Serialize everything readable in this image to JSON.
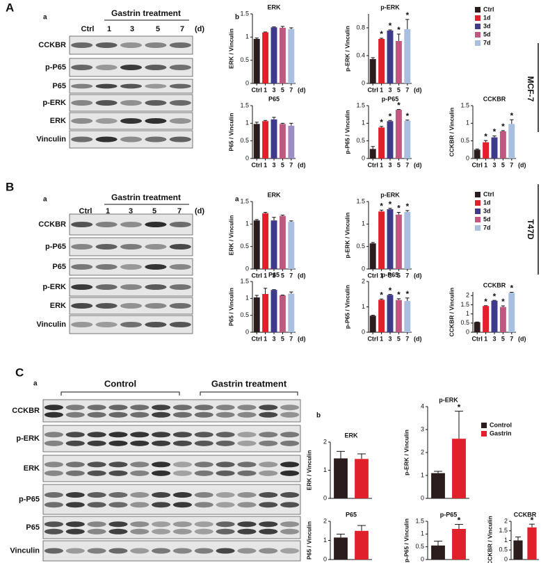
{
  "panels": [
    {
      "label": "A",
      "blot": {
        "label": "a",
        "header": "Gastrin treatment",
        "lanes": [
          "Ctrl",
          "1",
          "3",
          "5",
          "7",
          "(d)"
        ],
        "rows": [
          "CCKBR",
          "p-P65",
          "P65",
          "p-ERK",
          "ERK",
          "Vinculin"
        ]
      },
      "charts_label": "b",
      "cell_line": "MCF-7",
      "legend": {
        "names": [
          "Ctrl",
          "1d",
          "3d",
          "5d",
          "7d"
        ],
        "colors": [
          "#2b1d1d",
          "#e0202a",
          "#3f3a8a",
          "#c0577e",
          "#a9bfe0"
        ]
      }
    },
    {
      "label": "B",
      "blot": {
        "label": "a",
        "header": "Gastrin treatment",
        "lanes": [
          "Ctrl",
          "1",
          "3",
          "5",
          "7",
          "(d)"
        ],
        "rows": [
          "CCKBR",
          "p-P65",
          "P65",
          "p-ERK",
          "ERK",
          "Vinculin"
        ]
      },
      "charts_label": "a",
      "cell_line": "T47D",
      "legend": {
        "names": [
          "Ctrl",
          "1d",
          "3d",
          "5d",
          "7d"
        ],
        "colors": [
          "#2b1d1d",
          "#e0202a",
          "#3f3a8a",
          "#c0577e",
          "#a9bfe0"
        ]
      }
    },
    {
      "label": "C",
      "blot": {
        "label": "a",
        "groups": [
          "Control",
          "Gastrin treatment"
        ],
        "rows": [
          "CCKBR",
          "p-ERK",
          "ERK",
          "p-P65",
          "P65",
          "Vinculin"
        ]
      },
      "charts_label": "b",
      "legend": {
        "names": [
          "Control",
          "Gastrin"
        ],
        "colors": [
          "#2b1d1d",
          "#e0202a"
        ]
      }
    }
  ],
  "chart_data": [
    {
      "type": "bar",
      "title": "ERK",
      "ylabel": "ERK / Vinculin",
      "categories": [
        "Ctrl",
        "1",
        "3",
        "5",
        "7"
      ],
      "x_unit": "(d)",
      "values": [
        0.96,
        1.1,
        1.21,
        1.2,
        1.17
      ],
      "errors": [
        0.02,
        0.01,
        0.01,
        0.03,
        0.03
      ],
      "significance": [
        null,
        null,
        null,
        null,
        null
      ],
      "colors": [
        "#2b1d1d",
        "#e0202a",
        "#3f3a8a",
        "#c0577e",
        "#a9bfe0"
      ],
      "ylim": [
        0,
        1.5
      ],
      "yticks": [
        0,
        0.5,
        1,
        1.5
      ]
    },
    {
      "type": "bar",
      "title": "p-ERK",
      "ylabel": "p-ERK / Vinculin",
      "categories": [
        "Ctrl",
        "1",
        "3",
        "5",
        "7"
      ],
      "x_unit": "(d)",
      "values": [
        0.35,
        0.64,
        0.76,
        0.61,
        0.78
      ],
      "errors": [
        0.02,
        0.01,
        0.01,
        0.1,
        0.14
      ],
      "significance": [
        null,
        "*",
        "*",
        "*",
        "*"
      ],
      "colors": [
        "#2b1d1d",
        "#e0202a",
        "#3f3a8a",
        "#c0577e",
        "#a9bfe0"
      ],
      "ylim": [
        0,
        1.0
      ],
      "yticks": [
        0,
        0.4,
        0.8
      ]
    },
    {
      "type": "bar",
      "title": "P65",
      "ylabel": "P65 / Vinculin",
      "categories": [
        "Ctrl",
        "1",
        "3",
        "5",
        "7"
      ],
      "x_unit": "(d)",
      "values": [
        0.98,
        1.06,
        1.11,
        0.98,
        0.93
      ],
      "errors": [
        0.05,
        0.02,
        0.06,
        0.02,
        0.07
      ],
      "significance": [
        null,
        null,
        null,
        null,
        null
      ],
      "colors": [
        "#2b1d1d",
        "#e0202a",
        "#3f3a8a",
        "#c0577e",
        "#9b8ec4"
      ],
      "ylim": [
        0,
        1.5
      ],
      "yticks": [
        0,
        0.5,
        1,
        1.5
      ]
    },
    {
      "type": "bar",
      "title": "p-P65",
      "ylabel": "p-P65 / Vinculin",
      "categories": [
        "Ctrl",
        "1",
        "3",
        "5",
        "7"
      ],
      "x_unit": "(d)",
      "values": [
        0.27,
        0.88,
        1.06,
        1.38,
        1.07
      ],
      "errors": [
        0.07,
        0.03,
        0.02,
        0.01,
        0.02
      ],
      "significance": [
        null,
        "*",
        "*",
        "*",
        "*"
      ],
      "colors": [
        "#2b1d1d",
        "#e0202a",
        "#3f3a8a",
        "#c0577e",
        "#a9bfe0"
      ],
      "ylim": [
        0,
        1.5
      ],
      "yticks": [
        0,
        0.5,
        1,
        1.5
      ]
    },
    {
      "type": "bar",
      "title": "CCKBR",
      "ylabel": "CCKBR / Vinculin",
      "categories": [
        "Ctrl",
        "1",
        "3",
        "5",
        "7"
      ],
      "x_unit": "(d)",
      "values": [
        0.25,
        0.46,
        0.6,
        0.77,
        0.98
      ],
      "errors": [
        0.02,
        0.05,
        0.04,
        0.02,
        0.12
      ],
      "significance": [
        null,
        "*",
        "*",
        "*",
        "*"
      ],
      "colors": [
        "#2b1d1d",
        "#e0202a",
        "#3f3a8a",
        "#c0577e",
        "#a9bfe0"
      ],
      "ylim": [
        0,
        1.5
      ],
      "yticks": [
        0,
        0.5,
        1,
        1.5
      ]
    },
    {
      "type": "bar",
      "title": "ERK",
      "ylabel": "ERK / Vinculin",
      "categories": [
        "Ctrl",
        "1",
        "3",
        "5",
        "7"
      ],
      "x_unit": "(d)",
      "values": [
        1.08,
        1.24,
        1.08,
        1.18,
        1.05
      ],
      "errors": [
        0.02,
        0.02,
        0.07,
        0.02,
        0.02
      ],
      "significance": [
        null,
        null,
        null,
        null,
        null
      ],
      "colors": [
        "#2b1d1d",
        "#e0202a",
        "#3f3a8a",
        "#c0577e",
        "#a9bfe0"
      ],
      "ylim": [
        0,
        1.5
      ],
      "yticks": [
        0,
        0.5,
        1,
        1.5
      ]
    },
    {
      "type": "bar",
      "title": "p-ERK",
      "ylabel": "p-ERK / Vinculin",
      "categories": [
        "Ctrl",
        "1",
        "3",
        "5",
        "7"
      ],
      "x_unit": "(d)",
      "values": [
        0.57,
        1.28,
        1.33,
        1.21,
        1.27
      ],
      "errors": [
        0.02,
        0.03,
        0.02,
        0.05,
        0.03
      ],
      "significance": [
        null,
        "*",
        "*",
        "*",
        "*"
      ],
      "colors": [
        "#2b1d1d",
        "#e0202a",
        "#3f3a8a",
        "#c0577e",
        "#a9bfe0"
      ],
      "ylim": [
        0,
        1.5
      ],
      "yticks": [
        0,
        0.5,
        1,
        1.5
      ]
    },
    {
      "type": "bar",
      "title": "P65",
      "ylabel": "P65 / Vinculin",
      "categories": [
        "Ctrl",
        "1",
        "3",
        "5",
        "7"
      ],
      "x_unit": "(d)",
      "values": [
        1.03,
        1.13,
        1.25,
        1.09,
        1.14
      ],
      "errors": [
        0.06,
        0.17,
        0.01,
        0.01,
        0.05
      ],
      "significance": [
        null,
        null,
        null,
        null,
        null
      ],
      "colors": [
        "#2b1d1d",
        "#e0202a",
        "#3f3a8a",
        "#c0577e",
        "#a9bfe0"
      ],
      "ylim": [
        0,
        1.5
      ],
      "yticks": [
        0,
        0.5,
        1,
        1.5
      ]
    },
    {
      "type": "bar",
      "title": "p-P65",
      "ylabel": "p-P65 / Vinculin",
      "categories": [
        "Ctrl",
        "1",
        "3",
        "5",
        "7"
      ],
      "x_unit": "(d)",
      "values": [
        0.65,
        1.28,
        1.47,
        1.27,
        1.23
      ],
      "errors": [
        0.02,
        0.03,
        0.02,
        0.05,
        0.12
      ],
      "significance": [
        null,
        "*",
        "*",
        "*",
        "*"
      ],
      "colors": [
        "#2b1d1d",
        "#e0202a",
        "#3f3a8a",
        "#c0577e",
        "#a9bfe0"
      ],
      "ylim": [
        0,
        2
      ],
      "yticks": [
        0,
        1,
        2
      ]
    },
    {
      "type": "bar",
      "title": "CCKBR",
      "ylabel": "CCKBR / Vinculin",
      "categories": [
        "Ctrl",
        "1",
        "3",
        "5",
        "7"
      ],
      "x_unit": "(d)",
      "values": [
        0.55,
        1.43,
        1.72,
        1.38,
        2.15
      ],
      "errors": [
        0.01,
        0.02,
        0.02,
        0.06,
        0.03
      ],
      "significance": [
        null,
        "*",
        "*",
        "*",
        "*"
      ],
      "colors": [
        "#2b1d1d",
        "#e0202a",
        "#3f3a8a",
        "#c0577e",
        "#a9bfe0"
      ],
      "ylim": [
        0,
        2.2
      ],
      "yticks": [
        0,
        0.5,
        1,
        1.5,
        2
      ]
    },
    {
      "type": "bar",
      "title": "ERK",
      "ylabel": "ERK / Vinculin",
      "categories": [
        null,
        null
      ],
      "values": [
        1.42,
        1.4
      ],
      "errors": [
        0.25,
        0.18
      ],
      "significance": [
        null,
        null
      ],
      "colors": [
        "#2b1d1d",
        "#e0202a"
      ],
      "ylim": [
        0,
        2
      ],
      "yticks": [
        0,
        1,
        2
      ]
    },
    {
      "type": "bar",
      "title": "p-ERK",
      "ylabel": "p-ERK / Vinculin",
      "categories": [
        null,
        null
      ],
      "values": [
        1.1,
        2.6
      ],
      "errors": [
        0.08,
        1.2
      ],
      "significance": [
        null,
        "*"
      ],
      "colors": [
        "#2b1d1d",
        "#e0202a"
      ],
      "ylim": [
        0,
        4
      ],
      "yticks": [
        0,
        1,
        2,
        3,
        4
      ]
    },
    {
      "type": "bar",
      "title": "P65",
      "ylabel": "P65 / Vinculin",
      "categories": [
        null,
        null
      ],
      "values": [
        1.15,
        1.5
      ],
      "errors": [
        0.18,
        0.28
      ],
      "significance": [
        null,
        null
      ],
      "colors": [
        "#2b1d1d",
        "#e0202a"
      ],
      "ylim": [
        0,
        2
      ],
      "yticks": [
        0,
        1,
        2
      ]
    },
    {
      "type": "bar",
      "title": "p-P65",
      "ylabel": "p-P65 / Vinculin",
      "categories": [
        null,
        null
      ],
      "values": [
        0.55,
        1.2
      ],
      "errors": [
        0.17,
        0.18
      ],
      "significance": [
        null,
        "*"
      ],
      "colors": [
        "#2b1d1d",
        "#e0202a"
      ],
      "ylim": [
        0,
        1.5
      ],
      "yticks": [
        0,
        0.5,
        1,
        1.5
      ]
    },
    {
      "type": "bar",
      "title": "CCKBR",
      "ylabel": "CCKBR / Vinculin",
      "categories": [
        null,
        null
      ],
      "values": [
        1.0,
        1.68
      ],
      "errors": [
        0.18,
        0.17
      ],
      "significance": [
        null,
        "*"
      ],
      "colors": [
        "#2b1d1d",
        "#e0202a"
      ],
      "ylim": [
        0,
        2
      ],
      "yticks": [
        0,
        0.5,
        1,
        1.5,
        2
      ]
    }
  ]
}
